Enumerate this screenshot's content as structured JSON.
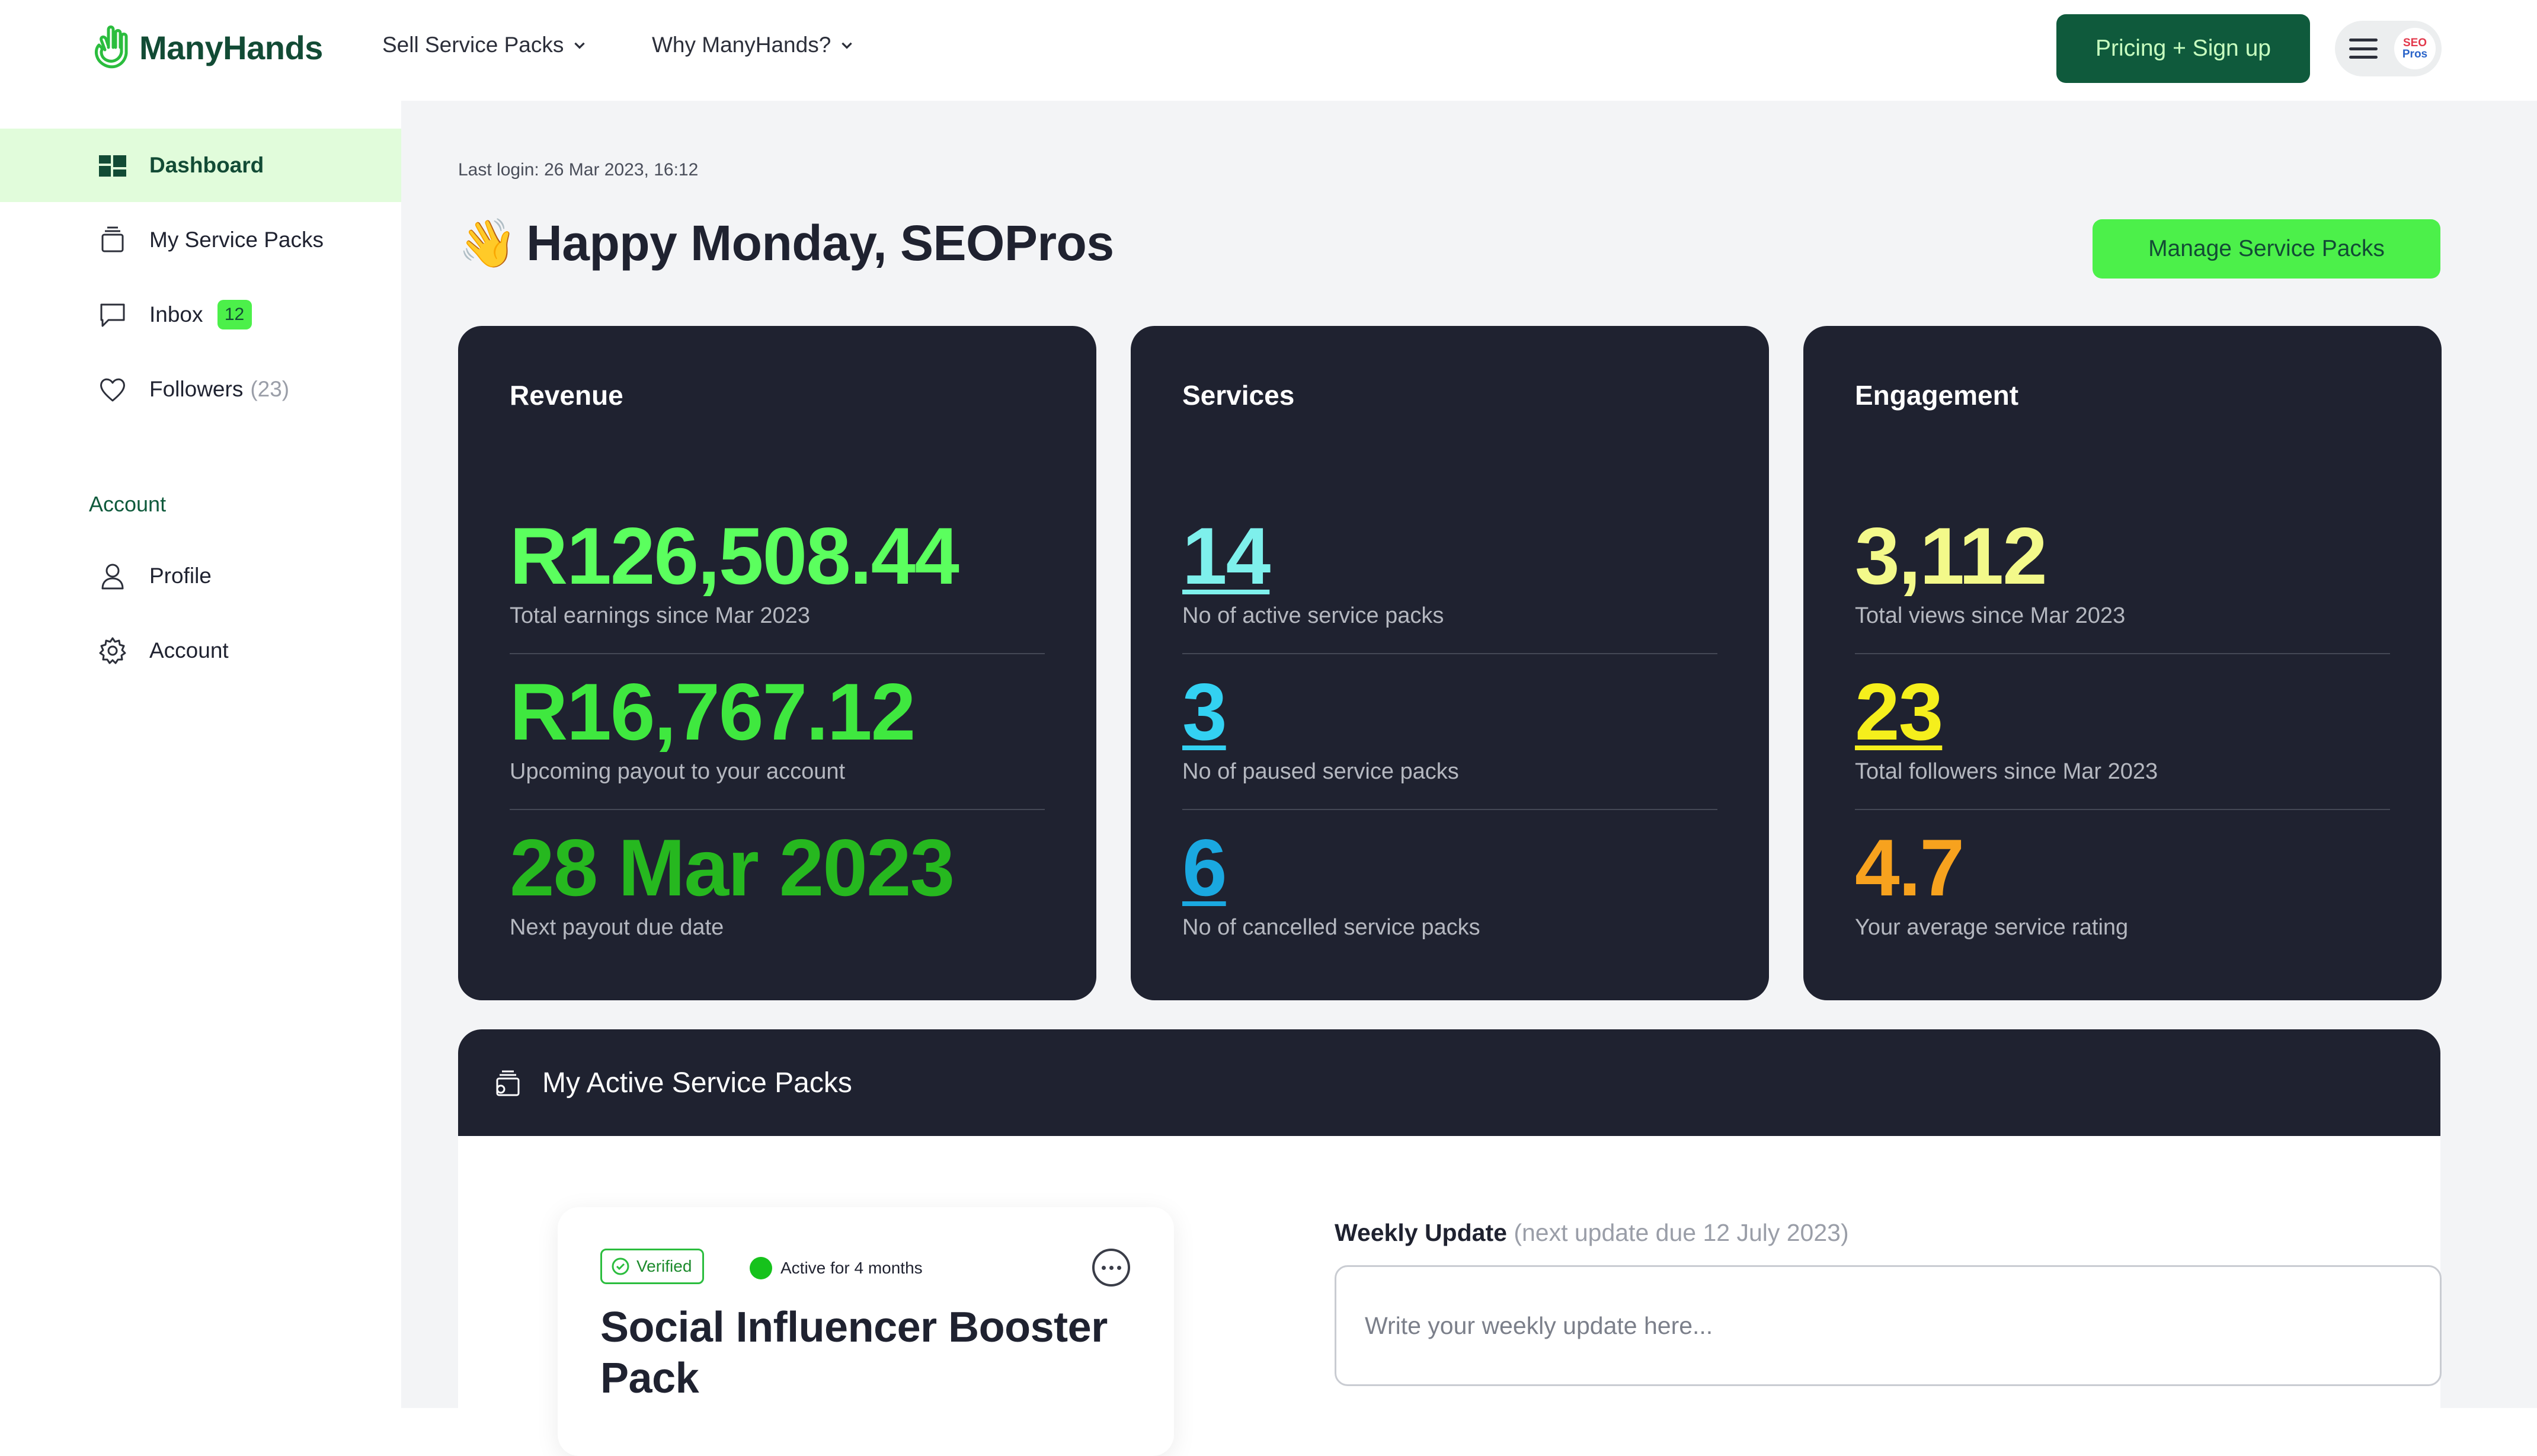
{
  "header": {
    "logo_text": "ManyHands",
    "nav": [
      {
        "label": "Sell Service Packs"
      },
      {
        "label": "Why ManyHands?"
      }
    ],
    "signup_label": "Pricing + Sign up",
    "avatar_line1": "SEO",
    "avatar_line2": "Pros"
  },
  "sidebar": {
    "items": [
      {
        "label": "Dashboard",
        "icon": "dashboard-icon",
        "active": true
      },
      {
        "label": "My Service Packs",
        "icon": "service-packs-icon"
      },
      {
        "label": "Inbox",
        "icon": "chat-bubble-icon",
        "badge": "12"
      },
      {
        "label": "Followers",
        "icon": "heart-icon",
        "count": "(23)"
      }
    ],
    "section_label": "Account",
    "account_items": [
      {
        "label": "Profile",
        "icon": "user-icon"
      },
      {
        "label": "Account",
        "icon": "gear-icon"
      }
    ]
  },
  "main": {
    "last_login": "Last login: 26 Mar 2023, 16:12",
    "greeting_emoji": "👋",
    "greeting": "Happy Monday, SEOPros",
    "manage_label": "Manage Service Packs",
    "cards": [
      {
        "title": "Revenue",
        "stats": [
          {
            "value": "R126,508.44",
            "caption": "Total earnings since Mar 2023",
            "color": "#5bff5e"
          },
          {
            "value": "R16,767.12",
            "caption": "Upcoming payout to your account",
            "color": "#3fe83f"
          },
          {
            "value": "28 Mar 2023",
            "caption": "Next payout due date",
            "color": "#26b81f"
          }
        ]
      },
      {
        "title": "Services",
        "stats": [
          {
            "value": "14",
            "caption": "No of active service packs",
            "color": "#7ef0ec"
          },
          {
            "value": "3",
            "caption": "No of paused service packs",
            "color": "#33d1f2"
          },
          {
            "value": "6",
            "caption": "No of cancelled service packs",
            "color": "#1aa8e0"
          }
        ]
      },
      {
        "title": "Engagement",
        "stats": [
          {
            "value": "3,112",
            "caption": "Total views since Mar 2023",
            "color": "#f3f98a"
          },
          {
            "value": "23",
            "caption": "Total followers since Mar 2023",
            "color": "#f5ef1c"
          },
          {
            "value": "4.7",
            "caption": "Your average service rating",
            "color": "#f7a21e"
          }
        ]
      }
    ],
    "active_packs": {
      "title": "My Active Service Packs",
      "pack": {
        "verified_label": "Verified",
        "status": "Active for 4 months",
        "title": "Social Influencer Booster Pack"
      },
      "weekly_label": "Weekly Update",
      "weekly_note": "(next update due 12 July 2023)",
      "weekly_placeholder": "Write your weekly update here..."
    }
  },
  "colors": {
    "brand_dark": "#0f5a3c",
    "brand_green": "#4cf04a",
    "card_bg": "#1f2230",
    "active_nav_bg": "#e1fcdb"
  }
}
